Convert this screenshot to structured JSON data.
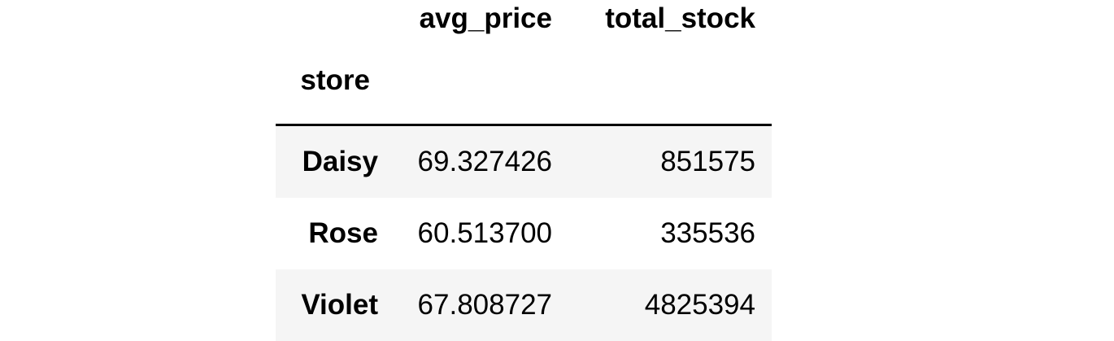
{
  "table": {
    "columns": [
      "avg_price",
      "total_stock"
    ],
    "index_name": "store",
    "rows": [
      {
        "store": "Daisy",
        "avg_price": "69.327426",
        "total_stock": "851575"
      },
      {
        "store": "Rose",
        "avg_price": "60.513700",
        "total_stock": "335536"
      },
      {
        "store": "Violet",
        "avg_price": "67.808727",
        "total_stock": "4825394"
      }
    ]
  },
  "colors": {
    "stripe": "#f5f5f5",
    "background": "#ffffff",
    "text": "#000000",
    "rule": "#000000"
  }
}
